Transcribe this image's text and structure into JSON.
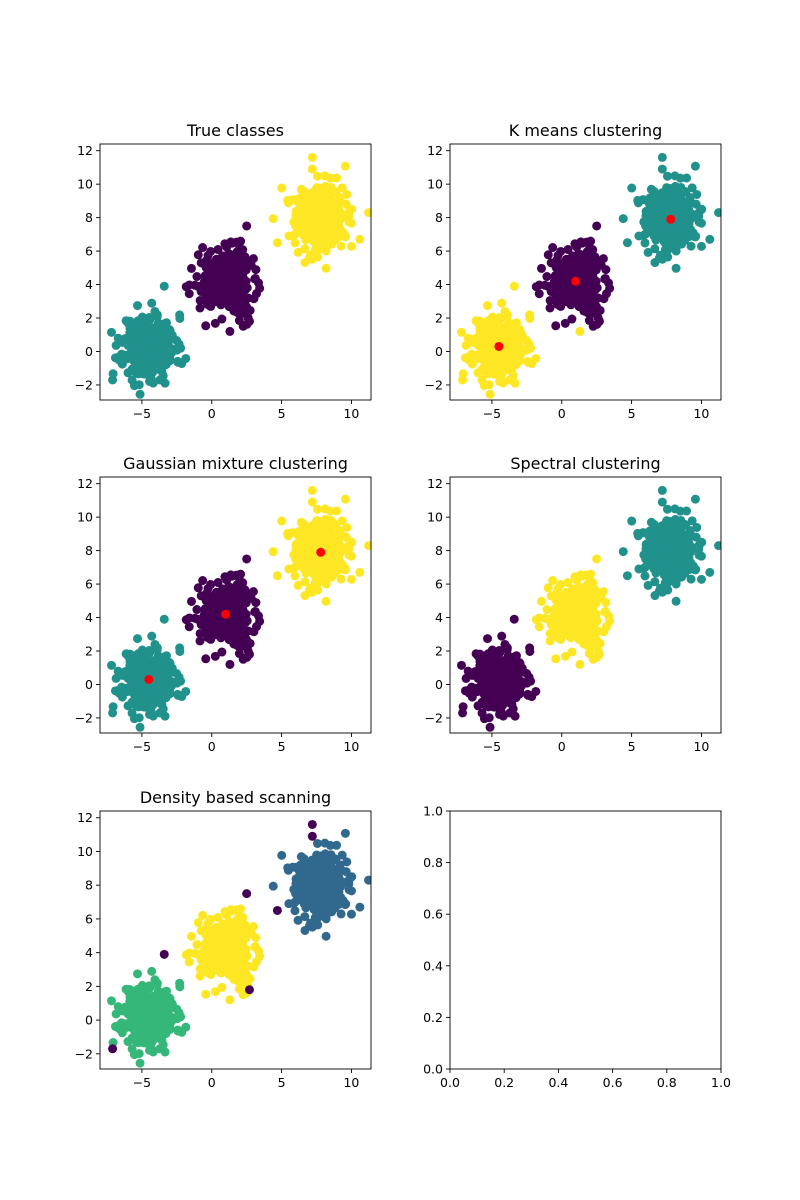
{
  "palette": {
    "purple": "#440154",
    "teal": "#21918c",
    "yellow": "#fde725",
    "blue": "#31688e",
    "green": "#35b779",
    "red": "#ff0000"
  },
  "chart_data": [
    {
      "type": "scatter",
      "title": "True classes",
      "xlim": [
        -8,
        11.4
      ],
      "ylim": [
        -2.9,
        12.4
      ],
      "xticks": [
        -5,
        0,
        5,
        10
      ],
      "yticks": [
        -2,
        0,
        2,
        4,
        6,
        8,
        10,
        12
      ],
      "clusters": [
        {
          "center": [
            -4.5,
            0.3
          ],
          "spread": [
            0.95,
            0.95
          ],
          "count": 320,
          "color": "teal",
          "seed": 11
        },
        {
          "center": [
            1.0,
            4.2
          ],
          "spread": [
            0.95,
            0.95
          ],
          "count": 320,
          "color": "purple",
          "seed": 22
        },
        {
          "center": [
            7.8,
            7.9
          ],
          "spread": [
            0.95,
            0.95
          ],
          "count": 320,
          "color": "yellow",
          "seed": 33
        }
      ],
      "outliers": [
        {
          "x": -3.4,
          "y": 3.9,
          "color": "teal"
        },
        {
          "x": -7.1,
          "y": -1.7,
          "color": "teal"
        },
        {
          "x": 2.5,
          "y": 7.5,
          "color": "purple"
        },
        {
          "x": 2.7,
          "y": 1.8,
          "color": "purple"
        },
        {
          "x": 1.3,
          "y": 1.2,
          "color": "purple"
        },
        {
          "x": 7.2,
          "y": 11.6,
          "color": "yellow"
        },
        {
          "x": 7.2,
          "y": 10.9,
          "color": "yellow"
        },
        {
          "x": 10.6,
          "y": 6.7,
          "color": "yellow"
        },
        {
          "x": 4.7,
          "y": 6.5,
          "color": "yellow"
        }
      ],
      "centroids": []
    },
    {
      "type": "scatter",
      "title": "K means clustering",
      "xlim": [
        -8,
        11.4
      ],
      "ylim": [
        -2.9,
        12.4
      ],
      "xticks": [
        -5,
        0,
        5,
        10
      ],
      "yticks": [
        -2,
        0,
        2,
        4,
        6,
        8,
        10,
        12
      ],
      "clusters": [
        {
          "center": [
            -4.5,
            0.3
          ],
          "spread": [
            0.95,
            0.95
          ],
          "count": 320,
          "color": "yellow",
          "seed": 11
        },
        {
          "center": [
            1.0,
            4.2
          ],
          "spread": [
            0.95,
            0.95
          ],
          "count": 320,
          "color": "purple",
          "seed": 22
        },
        {
          "center": [
            7.8,
            7.9
          ],
          "spread": [
            0.95,
            0.95
          ],
          "count": 320,
          "color": "teal",
          "seed": 33
        }
      ],
      "outliers": [
        {
          "x": -3.4,
          "y": 3.9,
          "color": "yellow"
        },
        {
          "x": -7.1,
          "y": -1.7,
          "color": "yellow"
        },
        {
          "x": 2.5,
          "y": 7.5,
          "color": "purple"
        },
        {
          "x": 2.7,
          "y": 1.8,
          "color": "purple"
        },
        {
          "x": 1.3,
          "y": 1.2,
          "color": "yellow"
        },
        {
          "x": 7.2,
          "y": 11.6,
          "color": "teal"
        },
        {
          "x": 7.2,
          "y": 10.9,
          "color": "teal"
        },
        {
          "x": 10.6,
          "y": 6.7,
          "color": "teal"
        },
        {
          "x": 4.7,
          "y": 6.5,
          "color": "teal"
        }
      ],
      "centroids": [
        {
          "x": -4.5,
          "y": 0.3
        },
        {
          "x": 1.0,
          "y": 4.2
        },
        {
          "x": 7.8,
          "y": 7.9
        }
      ]
    },
    {
      "type": "scatter",
      "title": "Gaussian mixture clustering",
      "xlim": [
        -8,
        11.4
      ],
      "ylim": [
        -2.9,
        12.4
      ],
      "xticks": [
        -5,
        0,
        5,
        10
      ],
      "yticks": [
        -2,
        0,
        2,
        4,
        6,
        8,
        10,
        12
      ],
      "clusters": [
        {
          "center": [
            -4.5,
            0.3
          ],
          "spread": [
            0.95,
            0.95
          ],
          "count": 320,
          "color": "teal",
          "seed": 11
        },
        {
          "center": [
            1.0,
            4.2
          ],
          "spread": [
            0.95,
            0.95
          ],
          "count": 320,
          "color": "purple",
          "seed": 22
        },
        {
          "center": [
            7.8,
            7.9
          ],
          "spread": [
            0.95,
            0.95
          ],
          "count": 320,
          "color": "yellow",
          "seed": 33
        }
      ],
      "outliers": [
        {
          "x": -3.4,
          "y": 3.9,
          "color": "teal"
        },
        {
          "x": -7.1,
          "y": -1.7,
          "color": "teal"
        },
        {
          "x": 2.5,
          "y": 7.5,
          "color": "purple"
        },
        {
          "x": 2.7,
          "y": 1.8,
          "color": "purple"
        },
        {
          "x": 1.3,
          "y": 1.2,
          "color": "purple"
        },
        {
          "x": 7.2,
          "y": 11.6,
          "color": "yellow"
        },
        {
          "x": 7.2,
          "y": 10.9,
          "color": "yellow"
        },
        {
          "x": 10.6,
          "y": 6.7,
          "color": "yellow"
        },
        {
          "x": 4.7,
          "y": 6.5,
          "color": "yellow"
        }
      ],
      "centroids": [
        {
          "x": -4.5,
          "y": 0.3
        },
        {
          "x": 1.0,
          "y": 4.2
        },
        {
          "x": 7.8,
          "y": 7.9
        }
      ]
    },
    {
      "type": "scatter",
      "title": "Spectral clustering",
      "xlim": [
        -8,
        11.4
      ],
      "ylim": [
        -2.9,
        12.4
      ],
      "xticks": [
        -5,
        0,
        5,
        10
      ],
      "yticks": [
        -2,
        0,
        2,
        4,
        6,
        8,
        10,
        12
      ],
      "clusters": [
        {
          "center": [
            -4.5,
            0.3
          ],
          "spread": [
            0.95,
            0.95
          ],
          "count": 320,
          "color": "purple",
          "seed": 11
        },
        {
          "center": [
            1.0,
            4.2
          ],
          "spread": [
            0.95,
            0.95
          ],
          "count": 320,
          "color": "yellow",
          "seed": 22
        },
        {
          "center": [
            7.8,
            7.9
          ],
          "spread": [
            0.95,
            0.95
          ],
          "count": 320,
          "color": "teal",
          "seed": 33
        }
      ],
      "outliers": [
        {
          "x": -3.4,
          "y": 3.9,
          "color": "purple"
        },
        {
          "x": -7.1,
          "y": -1.7,
          "color": "purple"
        },
        {
          "x": 2.5,
          "y": 7.5,
          "color": "yellow"
        },
        {
          "x": 2.7,
          "y": 1.8,
          "color": "yellow"
        },
        {
          "x": 1.3,
          "y": 1.2,
          "color": "yellow"
        },
        {
          "x": 7.2,
          "y": 11.6,
          "color": "teal"
        },
        {
          "x": 7.2,
          "y": 10.9,
          "color": "teal"
        },
        {
          "x": 10.6,
          "y": 6.7,
          "color": "teal"
        },
        {
          "x": 4.7,
          "y": 6.5,
          "color": "teal"
        }
      ],
      "centroids": []
    },
    {
      "type": "scatter",
      "title": "Density based scanning",
      "xlim": [
        -8,
        11.4
      ],
      "ylim": [
        -2.9,
        12.4
      ],
      "xticks": [
        -5,
        0,
        5,
        10
      ],
      "yticks": [
        -2,
        0,
        2,
        4,
        6,
        8,
        10,
        12
      ],
      "clusters": [
        {
          "center": [
            -4.5,
            0.3
          ],
          "spread": [
            0.95,
            0.95
          ],
          "count": 320,
          "color": "green",
          "seed": 11
        },
        {
          "center": [
            1.0,
            4.2
          ],
          "spread": [
            0.95,
            0.95
          ],
          "count": 320,
          "color": "yellow",
          "seed": 22
        },
        {
          "center": [
            7.8,
            7.9
          ],
          "spread": [
            0.95,
            0.95
          ],
          "count": 320,
          "color": "blue",
          "seed": 33
        }
      ],
      "outliers": [
        {
          "x": -3.4,
          "y": 3.9,
          "color": "purple"
        },
        {
          "x": -7.1,
          "y": -1.7,
          "color": "purple"
        },
        {
          "x": 2.5,
          "y": 7.5,
          "color": "purple"
        },
        {
          "x": 2.7,
          "y": 1.8,
          "color": "purple"
        },
        {
          "x": 1.3,
          "y": 1.2,
          "color": "yellow"
        },
        {
          "x": 7.2,
          "y": 11.6,
          "color": "purple"
        },
        {
          "x": 7.2,
          "y": 10.9,
          "color": "purple"
        },
        {
          "x": 10.6,
          "y": 6.7,
          "color": "blue"
        },
        {
          "x": 4.7,
          "y": 6.5,
          "color": "purple"
        }
      ],
      "centroids": []
    },
    {
      "type": "scatter",
      "title": "",
      "xlim": [
        0,
        1
      ],
      "ylim": [
        0,
        1
      ],
      "xticks": [
        0.0,
        0.2,
        0.4,
        0.6,
        0.8,
        1.0
      ],
      "yticks": [
        0.0,
        0.2,
        0.4,
        0.6,
        0.8,
        1.0
      ],
      "clusters": [],
      "outliers": [],
      "centroids": []
    }
  ]
}
